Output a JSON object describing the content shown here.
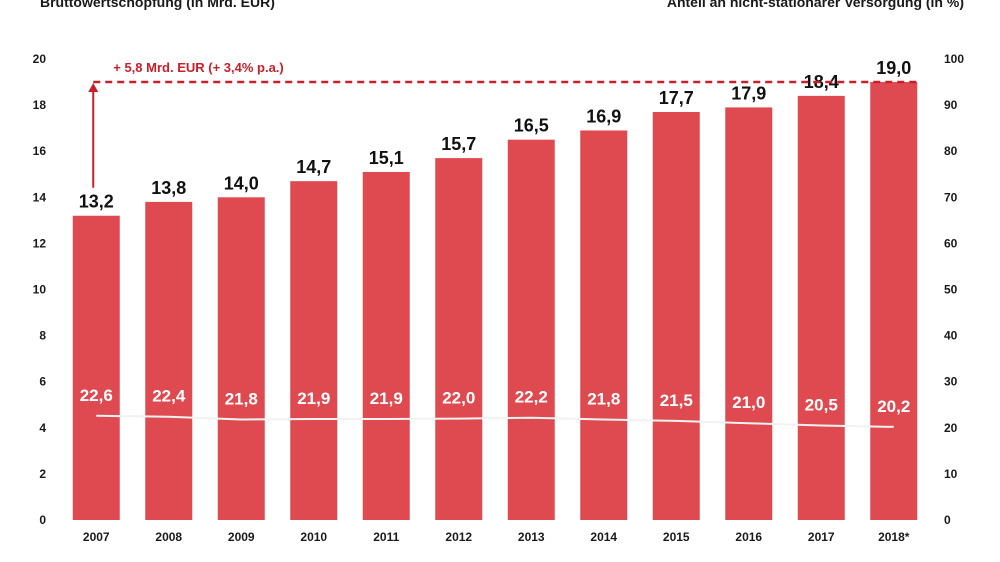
{
  "header": {
    "left_axis_title": "Bruttowertschöpfung (in Mrd. EUR)",
    "right_axis_title": "Anteil an nicht-stationärer Versorgung (in %)"
  },
  "annotation": {
    "text": "+ 5,8 Mrd. EUR (+ 3,4% p.a.)"
  },
  "colors": {
    "bar": "#de4a4f",
    "accent": "#c8202a",
    "line": "#f2f2f2"
  },
  "chart_data": {
    "type": "bar",
    "categories": [
      "2007",
      "2008",
      "2009",
      "2010",
      "2011",
      "2012",
      "2013",
      "2014",
      "2015",
      "2016",
      "2017",
      "2018*"
    ],
    "series": [
      {
        "values": [
          13.2,
          13.8,
          14.0,
          14.7,
          15.1,
          15.7,
          16.5,
          16.9,
          17.7,
          17.9,
          18.4,
          19.0
        ],
        "labels": [
          "13,2",
          "13,8",
          "14,0",
          "14,7",
          "15,1",
          "15,7",
          "16,5",
          "16,9",
          "17,7",
          "17,9",
          "18,4",
          "19,0"
        ],
        "axis": "left",
        "kind": "bar"
      },
      {
        "values": [
          22.6,
          22.4,
          21.8,
          21.9,
          21.9,
          22.0,
          22.2,
          21.8,
          21.5,
          21.0,
          20.5,
          20.2
        ],
        "labels": [
          "22,6",
          "22,4",
          "21,8",
          "21,9",
          "21,9",
          "22,0",
          "22,2",
          "21,8",
          "21,5",
          "21,0",
          "20,5",
          "20,2"
        ],
        "axis": "right",
        "kind": "line"
      }
    ],
    "left_axis": {
      "ylim": [
        0,
        20
      ],
      "ticks": [
        "0",
        "2",
        "4",
        "6",
        "8",
        "10",
        "12",
        "14",
        "16",
        "18",
        "20"
      ]
    },
    "right_axis": {
      "ylim": [
        0,
        100
      ],
      "ticks": [
        "0",
        "10",
        "20",
        "30",
        "40",
        "50",
        "60",
        "70",
        "80",
        "90",
        "100"
      ]
    },
    "grid": false,
    "legend": "none"
  }
}
